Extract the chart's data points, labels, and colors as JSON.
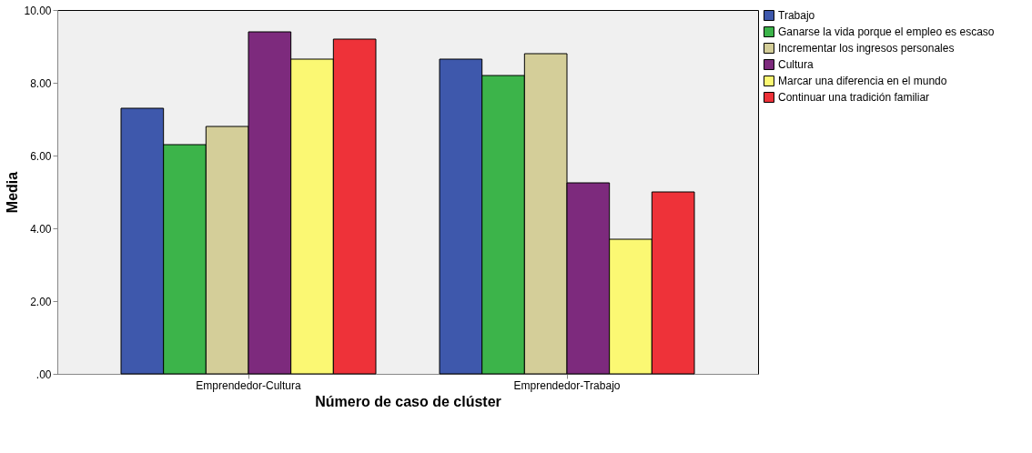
{
  "chart_data": {
    "type": "bar",
    "xlabel": "Número de caso de clúster",
    "ylabel": "Media",
    "categories": [
      "Emprendedor-Cultura",
      "Emprendedor-Trabajo"
    ],
    "series": [
      {
        "name": "Trabajo",
        "color": "#3e58ac",
        "values": [
          7.3,
          8.65
        ]
      },
      {
        "name": "Ganarse la vida porque el empleo es escaso",
        "color": "#3cb44a",
        "values": [
          6.3,
          8.2
        ]
      },
      {
        "name": "Incrementar los ingresos personales",
        "color": "#d4ce99",
        "values": [
          6.8,
          8.8
        ]
      },
      {
        "name": "Cultura",
        "color": "#7d2a7d",
        "values": [
          9.4,
          5.25
        ]
      },
      {
        "name": "Marcar una diferencia en el mundo",
        "color": "#fbf873",
        "values": [
          8.65,
          3.7
        ]
      },
      {
        "name": "Continuar una tradición familiar",
        "color": "#ee3239",
        "values": [
          9.2,
          5.0
        ]
      }
    ],
    "ylim": [
      0,
      10
    ],
    "yticks": [
      {
        "value": 0,
        "label": ".00"
      },
      {
        "value": 2,
        "label": "2.00"
      },
      {
        "value": 4,
        "label": "4.00"
      },
      {
        "value": 6,
        "label": "6.00"
      },
      {
        "value": 8,
        "label": "8.00"
      },
      {
        "value": 10,
        "label": "10.00"
      }
    ],
    "grid": false,
    "legend": "top right"
  }
}
